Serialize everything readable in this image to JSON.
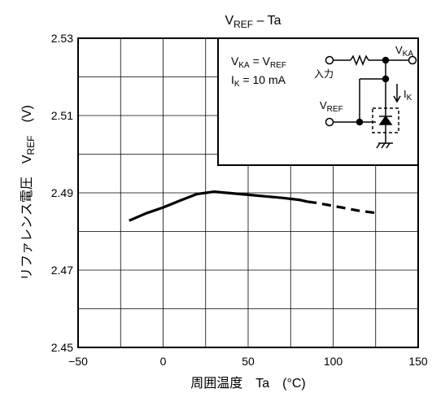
{
  "chart_data": {
    "type": "line",
    "title": {
      "main": "V",
      "sub": "REF",
      "suffix": " – Ta"
    },
    "xlabel": "周囲温度　Ta　(°C)",
    "ylabel": {
      "main": "リファレンス電圧　V",
      "sub": "REF",
      "suffix": "　(V)"
    },
    "xlim": [
      -50,
      150
    ],
    "ylim": [
      2.45,
      2.53
    ],
    "x_ticks": [
      {
        "value": -50,
        "label": "−50"
      },
      {
        "value": 0,
        "label": "0"
      },
      {
        "value": 50,
        "label": "50"
      },
      {
        "value": 100,
        "label": "100"
      },
      {
        "value": 150,
        "label": "150"
      }
    ],
    "y_ticks": [
      {
        "value": 2.45,
        "label": "2.45"
      },
      {
        "value": 2.47,
        "label": "2.47"
      },
      {
        "value": 2.49,
        "label": "2.49"
      },
      {
        "value": 2.51,
        "label": "2.51"
      },
      {
        "value": 2.53,
        "label": "2.53"
      }
    ],
    "x_grid_step": 25,
    "y_grid_step": 0.01,
    "grid": true,
    "series": [
      {
        "style": "solid",
        "x": [
          -20,
          -10,
          0,
          10,
          20,
          30,
          40,
          50,
          60,
          70,
          80,
          85
        ],
        "y": [
          2.4828,
          2.4847,
          2.4862,
          2.488,
          2.4897,
          2.4903,
          2.4899,
          2.4895,
          2.4891,
          2.4887,
          2.4882,
          2.4877
        ]
      },
      {
        "style": "dashed",
        "x": [
          85,
          90,
          95,
          100,
          105,
          110,
          115,
          120,
          125
        ],
        "y": [
          2.4877,
          2.4874,
          2.487,
          2.4866,
          2.4862,
          2.4858,
          2.4854,
          2.4851,
          2.4848
        ]
      }
    ],
    "inset": {
      "cond1": {
        "a": "V",
        "a_sub": "KA",
        "eq": " = V",
        "b_sub": "REF"
      },
      "cond2": {
        "a": "I",
        "a_sub": "K",
        "eq": " = 10 mA"
      },
      "input_label": "入力",
      "vka_label": {
        "main": "V",
        "sub": "KA"
      },
      "vref_label": {
        "main": "V",
        "sub": "REF"
      },
      "ik_label": {
        "main": "I",
        "sub": "K"
      }
    }
  }
}
